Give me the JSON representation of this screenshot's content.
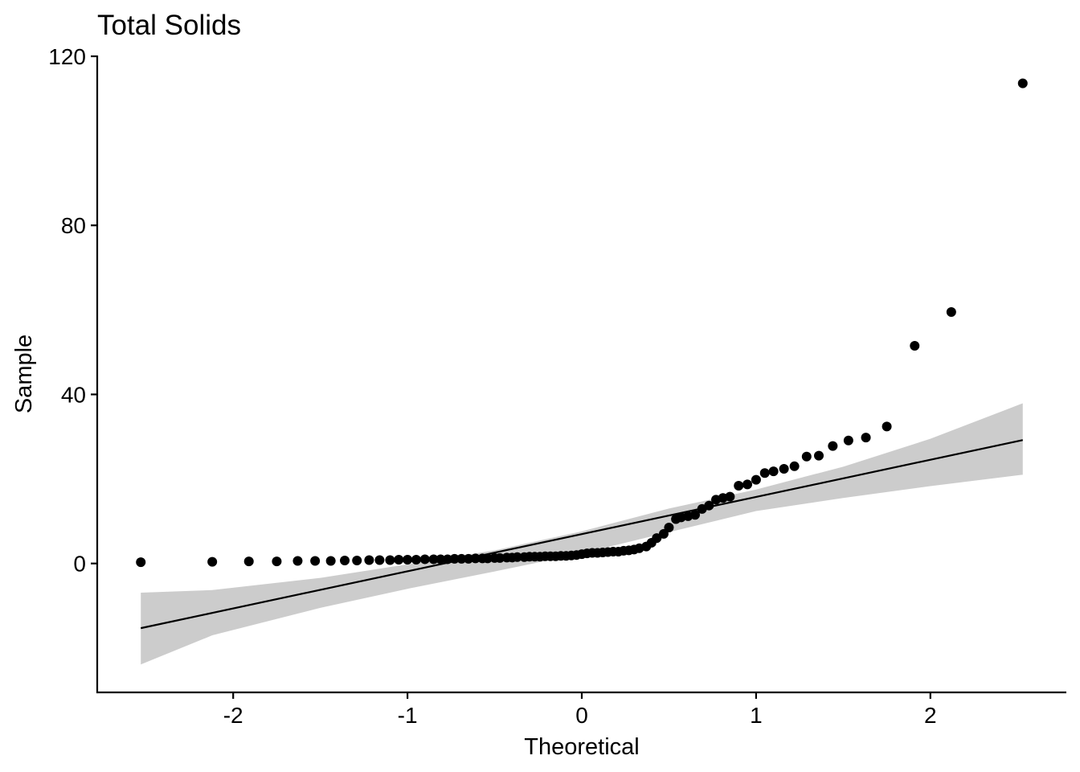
{
  "chart_data": {
    "type": "scatter",
    "subtype": "qq-plot",
    "title": "Total Solids",
    "xlabel": "Theoretical",
    "ylabel": "Sample",
    "xlim": [
      -2.78,
      2.78
    ],
    "ylim": [
      -30.5,
      120
    ],
    "x_ticks": [
      -2,
      -1,
      0,
      1,
      2
    ],
    "y_ticks": [
      0,
      40,
      80,
      120
    ],
    "grid": false,
    "legend": "none",
    "point_color": "#000000",
    "line_color": "#000000",
    "band_color": "#cccccc",
    "reference_line": {
      "x": [
        -2.53,
        2.53
      ],
      "y": [
        -15.3,
        29.2
      ]
    },
    "confidence_band": {
      "x": [
        -2.53,
        -2.12,
        -1.5,
        -1.0,
        -0.5,
        0.0,
        0.5,
        1.0,
        1.5,
        2.0,
        2.53
      ],
      "upper": [
        -6.9,
        -6.3,
        -3.4,
        -0.2,
        3.1,
        7.6,
        13.0,
        17.5,
        22.9,
        29.5,
        37.9
      ],
      "lower": [
        -23.9,
        -17.0,
        -10.5,
        -6.0,
        -1.9,
        2.4,
        7.4,
        12.4,
        15.5,
        18.3,
        21.0
      ]
    },
    "points": {
      "x": [
        -2.53,
        -2.12,
        -1.91,
        -1.75,
        -1.63,
        -1.53,
        -1.44,
        -1.36,
        -1.29,
        -1.22,
        -1.16,
        -1.1,
        -1.05,
        -1.0,
        -0.95,
        -0.9,
        -0.85,
        -0.81,
        -0.77,
        -0.73,
        -0.69,
        -0.65,
        -0.61,
        -0.57,
        -0.54,
        -0.5,
        -0.47,
        -0.43,
        -0.4,
        -0.37,
        -0.33,
        -0.3,
        -0.27,
        -0.24,
        -0.21,
        -0.18,
        -0.15,
        -0.12,
        -0.09,
        -0.06,
        -0.03,
        0.0,
        0.03,
        0.06,
        0.09,
        0.12,
        0.15,
        0.18,
        0.21,
        0.24,
        0.27,
        0.3,
        0.33,
        0.37,
        0.4,
        0.43,
        0.47,
        0.5,
        0.54,
        0.57,
        0.61,
        0.65,
        0.69,
        0.73,
        0.77,
        0.81,
        0.85,
        0.9,
        0.95,
        1.0,
        1.05,
        1.1,
        1.16,
        1.22,
        1.29,
        1.36,
        1.44,
        1.53,
        1.63,
        1.75,
        1.91,
        2.12,
        2.53
      ],
      "y": [
        0.3,
        0.4,
        0.5,
        0.5,
        0.6,
        0.6,
        0.6,
        0.7,
        0.7,
        0.8,
        0.8,
        0.8,
        0.9,
        0.9,
        0.9,
        1.0,
        1.0,
        1.0,
        1.0,
        1.1,
        1.1,
        1.1,
        1.2,
        1.2,
        1.2,
        1.3,
        1.3,
        1.4,
        1.4,
        1.5,
        1.5,
        1.6,
        1.6,
        1.6,
        1.7,
        1.7,
        1.7,
        1.8,
        1.8,
        1.9,
        2.0,
        2.2,
        2.4,
        2.5,
        2.5,
        2.6,
        2.7,
        2.8,
        2.8,
        3.0,
        3.1,
        3.3,
        3.6,
        4.0,
        4.9,
        6.0,
        7.0,
        8.5,
        10.5,
        10.9,
        11.2,
        11.5,
        12.9,
        13.7,
        15.1,
        15.5,
        15.8,
        18.4,
        18.7,
        19.8,
        21.4,
        21.8,
        22.4,
        23.0,
        25.3,
        25.5,
        27.8,
        29.1,
        29.8,
        32.4,
        51.5,
        59.5,
        113.6
      ]
    }
  }
}
